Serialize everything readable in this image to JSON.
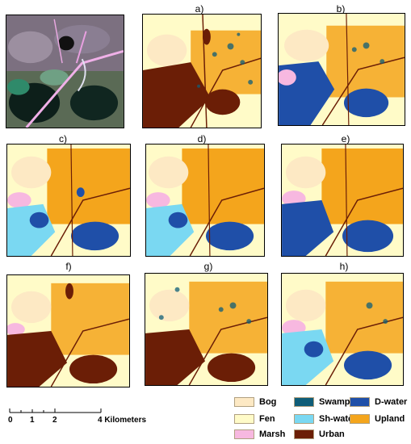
{
  "panels": {
    "original": {
      "label": ""
    },
    "a": {
      "label": "a)"
    },
    "b": {
      "label": "b)"
    },
    "c": {
      "label": "c)"
    },
    "d": {
      "label": "d)"
    },
    "e": {
      "label": "e)"
    },
    "f": {
      "label": "f)"
    },
    "g": {
      "label": "g)"
    },
    "h": {
      "label": "h)"
    }
  },
  "scale_bar": {
    "ticks": [
      "0",
      "1",
      "2",
      "4 Kilometers"
    ]
  },
  "legend": {
    "items": [
      {
        "label": "Bog",
        "color": "#fde9c4"
      },
      {
        "label": "Swamp",
        "color": "#0f5d78"
      },
      {
        "label": "D-water",
        "color": "#1f4fa8"
      },
      {
        "label": "Fen",
        "color": "#fffbc8"
      },
      {
        "label": "Sh-water",
        "color": "#7ad8f2"
      },
      {
        "label": "Upland",
        "color": "#f4a51c"
      },
      {
        "label": "Marsh",
        "color": "#f7b8e0"
      },
      {
        "label": "Urban",
        "color": "#6b1e06"
      }
    ]
  },
  "colors": {
    "bog": "#fde9c4",
    "fen": "#fffbc8",
    "marsh": "#f7b8e0",
    "swamp": "#0f5d78",
    "shwater": "#7ad8f2",
    "urban": "#6b1e06",
    "dwater": "#1f4fa8",
    "upland": "#f4a51c"
  }
}
